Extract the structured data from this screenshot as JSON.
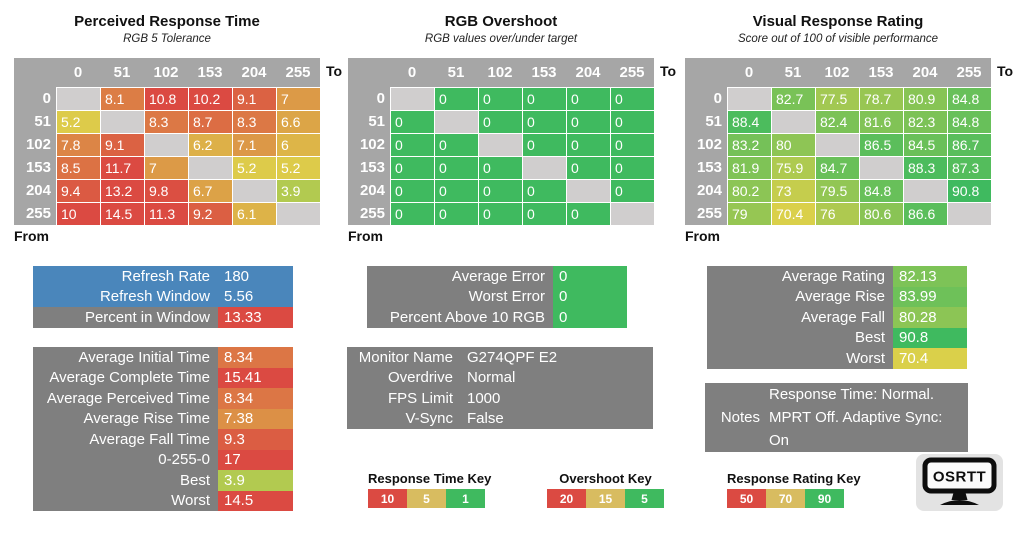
{
  "colors": {
    "header_gray": "#a6a6a6",
    "blank_cell": "#d0cece",
    "label_gray": "#7f7f7f",
    "blue": "#4a86bb",
    "scale_red": "#db4a42",
    "scale_yellow": "#ddd04a",
    "scale_green": "#3fba5f",
    "key_mid_tan": "#d8bc60"
  },
  "scales": {
    "time": {
      "green": 1,
      "yellow": 5,
      "red": 10
    },
    "overshoot": {
      "green": 5,
      "yellow": 15,
      "red": 20
    },
    "rating": {
      "red": 50,
      "yellow": 70,
      "green": 90
    }
  },
  "chart_data": [
    {
      "type": "heatmap",
      "title": "Perceived Response Time",
      "subtitle": "RGB 5 Tolerance",
      "x_label": "To",
      "y_label": "From",
      "scale": "time",
      "col_headers": [
        "0",
        "51",
        "102",
        "153",
        "204",
        "255"
      ],
      "row_headers": [
        "0",
        "51",
        "102",
        "153",
        "204",
        "255"
      ],
      "values": [
        [
          null,
          8.1,
          10.8,
          10.2,
          9.1,
          7
        ],
        [
          5.2,
          null,
          8.3,
          8.7,
          8.3,
          6.6
        ],
        [
          7.8,
          9.1,
          null,
          6.2,
          7.1,
          6
        ],
        [
          8.5,
          11.7,
          7,
          null,
          5.2,
          5.2
        ],
        [
          9.4,
          13.2,
          9.8,
          6.7,
          null,
          3.9
        ],
        [
          10,
          14.5,
          11.3,
          9.2,
          6.1,
          null
        ]
      ]
    },
    {
      "type": "heatmap",
      "title": "RGB Overshoot",
      "subtitle": "RGB values over/under target",
      "x_label": "To",
      "y_label": "From",
      "scale": "overshoot",
      "col_headers": [
        "0",
        "51",
        "102",
        "153",
        "204",
        "255"
      ],
      "row_headers": [
        "0",
        "51",
        "102",
        "153",
        "204",
        "255"
      ],
      "values": [
        [
          null,
          0,
          0,
          0,
          0,
          0
        ],
        [
          0,
          null,
          0,
          0,
          0,
          0
        ],
        [
          0,
          0,
          null,
          0,
          0,
          0
        ],
        [
          0,
          0,
          0,
          null,
          0,
          0
        ],
        [
          0,
          0,
          0,
          0,
          null,
          0
        ],
        [
          0,
          0,
          0,
          0,
          0,
          null
        ]
      ]
    },
    {
      "type": "heatmap",
      "title": "Visual Response Rating",
      "subtitle": "Score out of 100 of visible performance",
      "x_label": "To",
      "y_label": "From",
      "scale": "rating",
      "col_headers": [
        "0",
        "51",
        "102",
        "153",
        "204",
        "255"
      ],
      "row_headers": [
        "0",
        "51",
        "102",
        "153",
        "204",
        "255"
      ],
      "values": [
        [
          null,
          82.7,
          77.5,
          78.7,
          80.9,
          84.8
        ],
        [
          88.4,
          null,
          82.4,
          81.6,
          82.3,
          84.8
        ],
        [
          83.2,
          80,
          null,
          86.5,
          84.5,
          86.7
        ],
        [
          81.9,
          75.9,
          84.7,
          null,
          88.3,
          87.3
        ],
        [
          80.2,
          73,
          79.5,
          84.8,
          null,
          90.8
        ],
        [
          79,
          70.4,
          76,
          80.6,
          86.6,
          null
        ]
      ]
    }
  ],
  "panels": {
    "left_top": {
      "rows": [
        {
          "label": "Refresh Rate",
          "value": "180",
          "row_bg": "blue"
        },
        {
          "label": "Refresh Window",
          "value": "5.56",
          "row_bg": "blue"
        },
        {
          "label": "Percent in Window",
          "value": "13.33",
          "scale": "time"
        }
      ]
    },
    "left_bottom": {
      "rows": [
        {
          "label": "Average Initial Time",
          "value": "8.34",
          "scale": "time"
        },
        {
          "label": "Average Complete Time",
          "value": "15.41",
          "scale": "time"
        },
        {
          "label": "Average Perceived Time",
          "value": "8.34",
          "scale": "time"
        },
        {
          "label": "Average Rise Time",
          "value": "7.38",
          "scale": "time"
        },
        {
          "label": "Average Fall Time",
          "value": "9.3",
          "scale": "time"
        },
        {
          "label": "0-255-0",
          "value": "17",
          "scale": "time"
        },
        {
          "label": "Best",
          "value": "3.9",
          "scale": "time"
        },
        {
          "label": "Worst",
          "value": "14.5",
          "scale": "time"
        }
      ]
    },
    "mid_top": {
      "rows": [
        {
          "label": "Average Error",
          "value": "0",
          "scale": "overshoot"
        },
        {
          "label": "Worst Error",
          "value": "0",
          "scale": "overshoot"
        },
        {
          "label": "Percent Above 10 RGB",
          "value": "0",
          "scale": "overshoot"
        }
      ]
    },
    "mid_bottom": {
      "rows": [
        {
          "label": "Monitor Name",
          "value": "G274QPF E2"
        },
        {
          "label": "Overdrive",
          "value": "Normal"
        },
        {
          "label": "FPS Limit",
          "value": "1000"
        },
        {
          "label": "V-Sync",
          "value": "False"
        }
      ]
    },
    "right_top": {
      "rows": [
        {
          "label": "Average Rating",
          "value": "82.13",
          "scale": "rating"
        },
        {
          "label": "Average Rise",
          "value": "83.99",
          "scale": "rating"
        },
        {
          "label": "Average Fall",
          "value": "80.28",
          "scale": "rating"
        },
        {
          "label": "Best",
          "value": "90.8",
          "scale": "rating"
        },
        {
          "label": "Worst",
          "value": "70.4",
          "scale": "rating"
        }
      ]
    },
    "notes": {
      "label": "Notes",
      "text": "Response Time: Normal. MPRT Off. Adaptive Sync: On"
    }
  },
  "keys": [
    {
      "title": "Response Time Key",
      "cells": [
        "10",
        "5",
        "1"
      ]
    },
    {
      "title": "Overshoot Key",
      "cells": [
        "20",
        "15",
        "5"
      ]
    },
    {
      "title": "Response Rating Key",
      "cells": [
        "50",
        "70",
        "90"
      ]
    }
  ],
  "logo_text": "OSRTT"
}
